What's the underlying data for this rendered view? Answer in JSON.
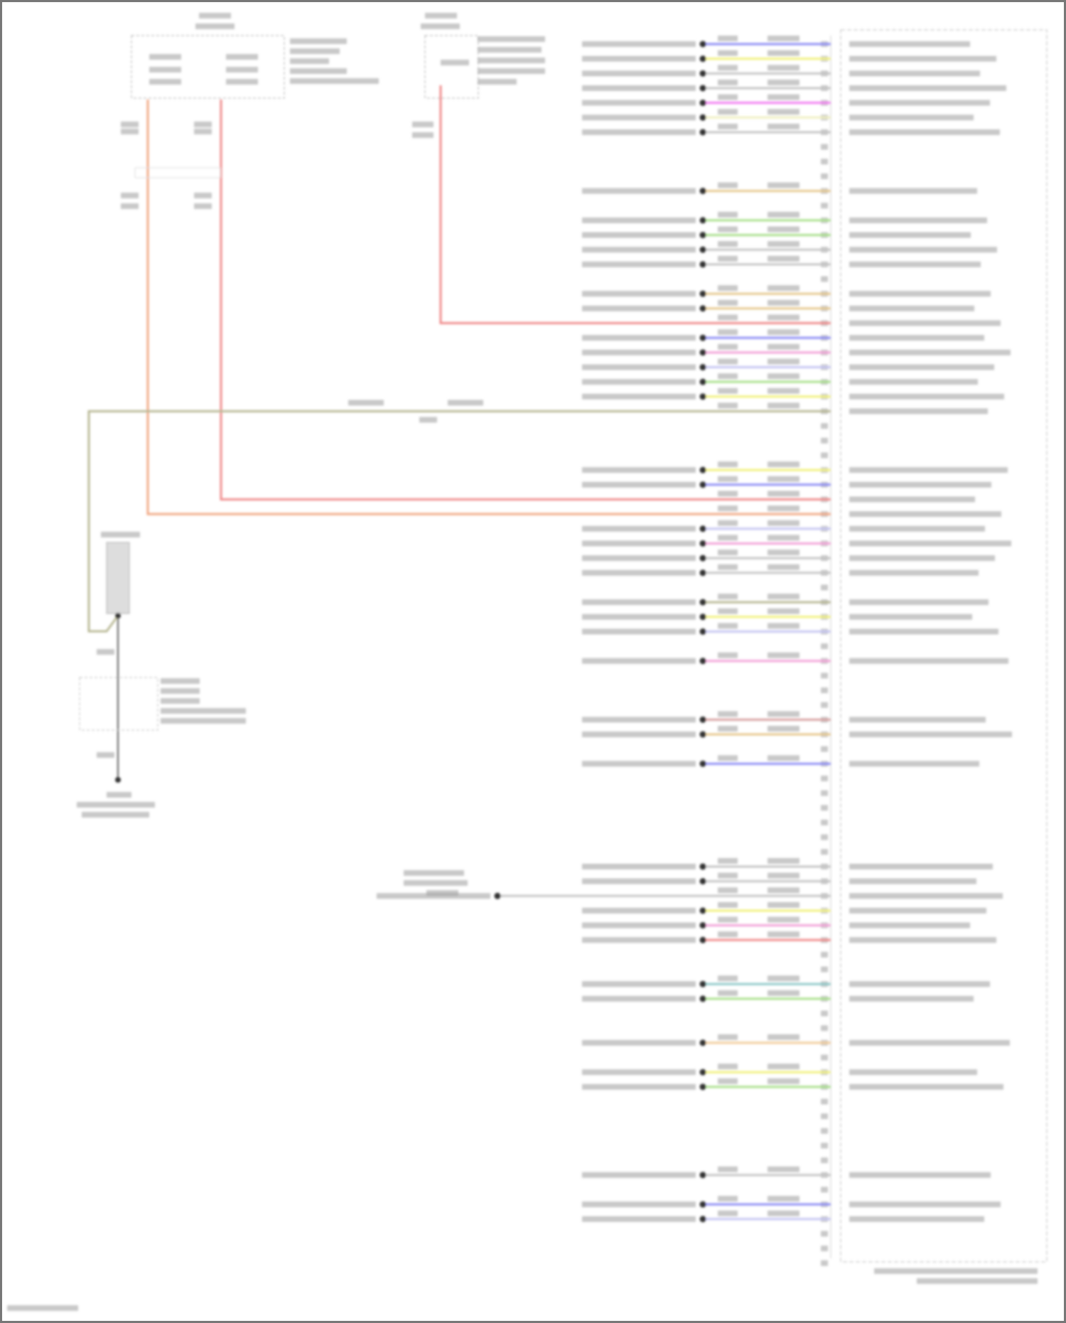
{
  "diagram": {
    "wire_colors": {
      "blue": "#8c8cf5",
      "yellow": "#f2f27a",
      "gray": "#c4c4c4",
      "magenta": "#f27af2",
      "lightyellow": "#efefbf",
      "tan": "#e6c88c",
      "green": "#a8e08a",
      "red": "#f08a8a",
      "pink": "#f3a0d8",
      "lavender": "#c4c4f2",
      "olive": "#b8b894",
      "orange": "#f2a883",
      "brown": "#d8a0a0",
      "teal": "#8cc8c8",
      "peach": "#f2cc99"
    },
    "module_pins": [
      "blue",
      "yellow",
      "gray",
      "gray",
      "magenta",
      "lightyellow",
      "gray",
      "",
      "",
      "",
      "tan",
      "",
      "green",
      "green",
      "gray",
      "gray",
      "",
      "tan",
      "tan",
      "red",
      "blue",
      "pink",
      "lavender",
      "green",
      "yellow",
      "olive",
      "",
      "",
      "",
      "yellow",
      "blue",
      "red",
      "orange",
      "lavender",
      "pink",
      "gray",
      "gray",
      "",
      "olive",
      "yellow",
      "lavender",
      "",
      "pink",
      "",
      "",
      "",
      "brown",
      "tan",
      "",
      "blue",
      "",
      "",
      "",
      "",
      "",
      "",
      "gray",
      "gray",
      "gray",
      "yellow",
      "pink",
      "red",
      "",
      "",
      "teal",
      "green",
      "",
      "",
      "peach",
      "",
      "yellow",
      "green",
      "",
      "",
      "",
      "",
      "",
      "gray",
      "",
      "blue",
      "lavender",
      "",
      "",
      ""
    ],
    "battery_feed_pins": [
      19,
      31,
      32
    ],
    "ground_pin": 25,
    "long_lead_pin": 58
  }
}
